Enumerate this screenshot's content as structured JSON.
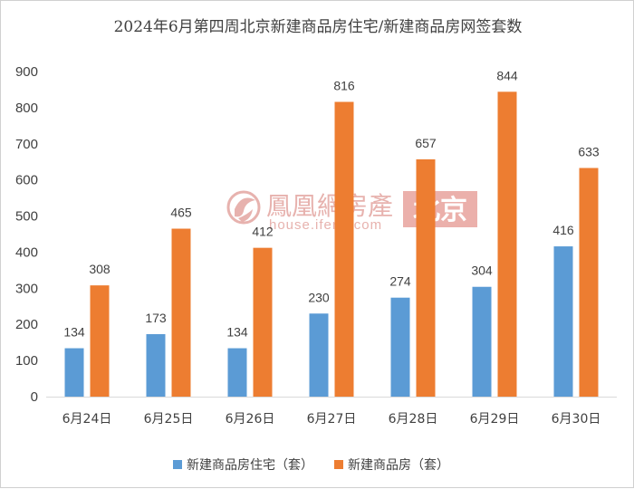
{
  "chart_data": {
    "type": "bar",
    "title": "2024年6月第四周北京新建商品房住宅/新建商品房网签套数",
    "categories": [
      "6月24日",
      "6月25日",
      "6月26日",
      "6月27日",
      "6月28日",
      "6月29日",
      "6月30日"
    ],
    "series": [
      {
        "name": "新建商品房住宅（套）",
        "color": "#5b9bd5",
        "values": [
          134,
          173,
          134,
          230,
          274,
          304,
          416
        ]
      },
      {
        "name": "新建商品房（套）",
        "color": "#ed7d31",
        "values": [
          308,
          465,
          412,
          816,
          657,
          844,
          633
        ]
      }
    ],
    "ylim": [
      0,
      900
    ],
    "yticks": [
      0,
      100,
      200,
      300,
      400,
      500,
      600,
      700,
      800,
      900
    ],
    "grid": false,
    "legend": "bottom",
    "data_labels": true
  },
  "watermark": {
    "brand": "鳳凰網房產",
    "url": "house.ifeng.com",
    "city": "北京",
    "color": "#e3a5a0",
    "icon": "ifeng-phoenix-logo"
  }
}
